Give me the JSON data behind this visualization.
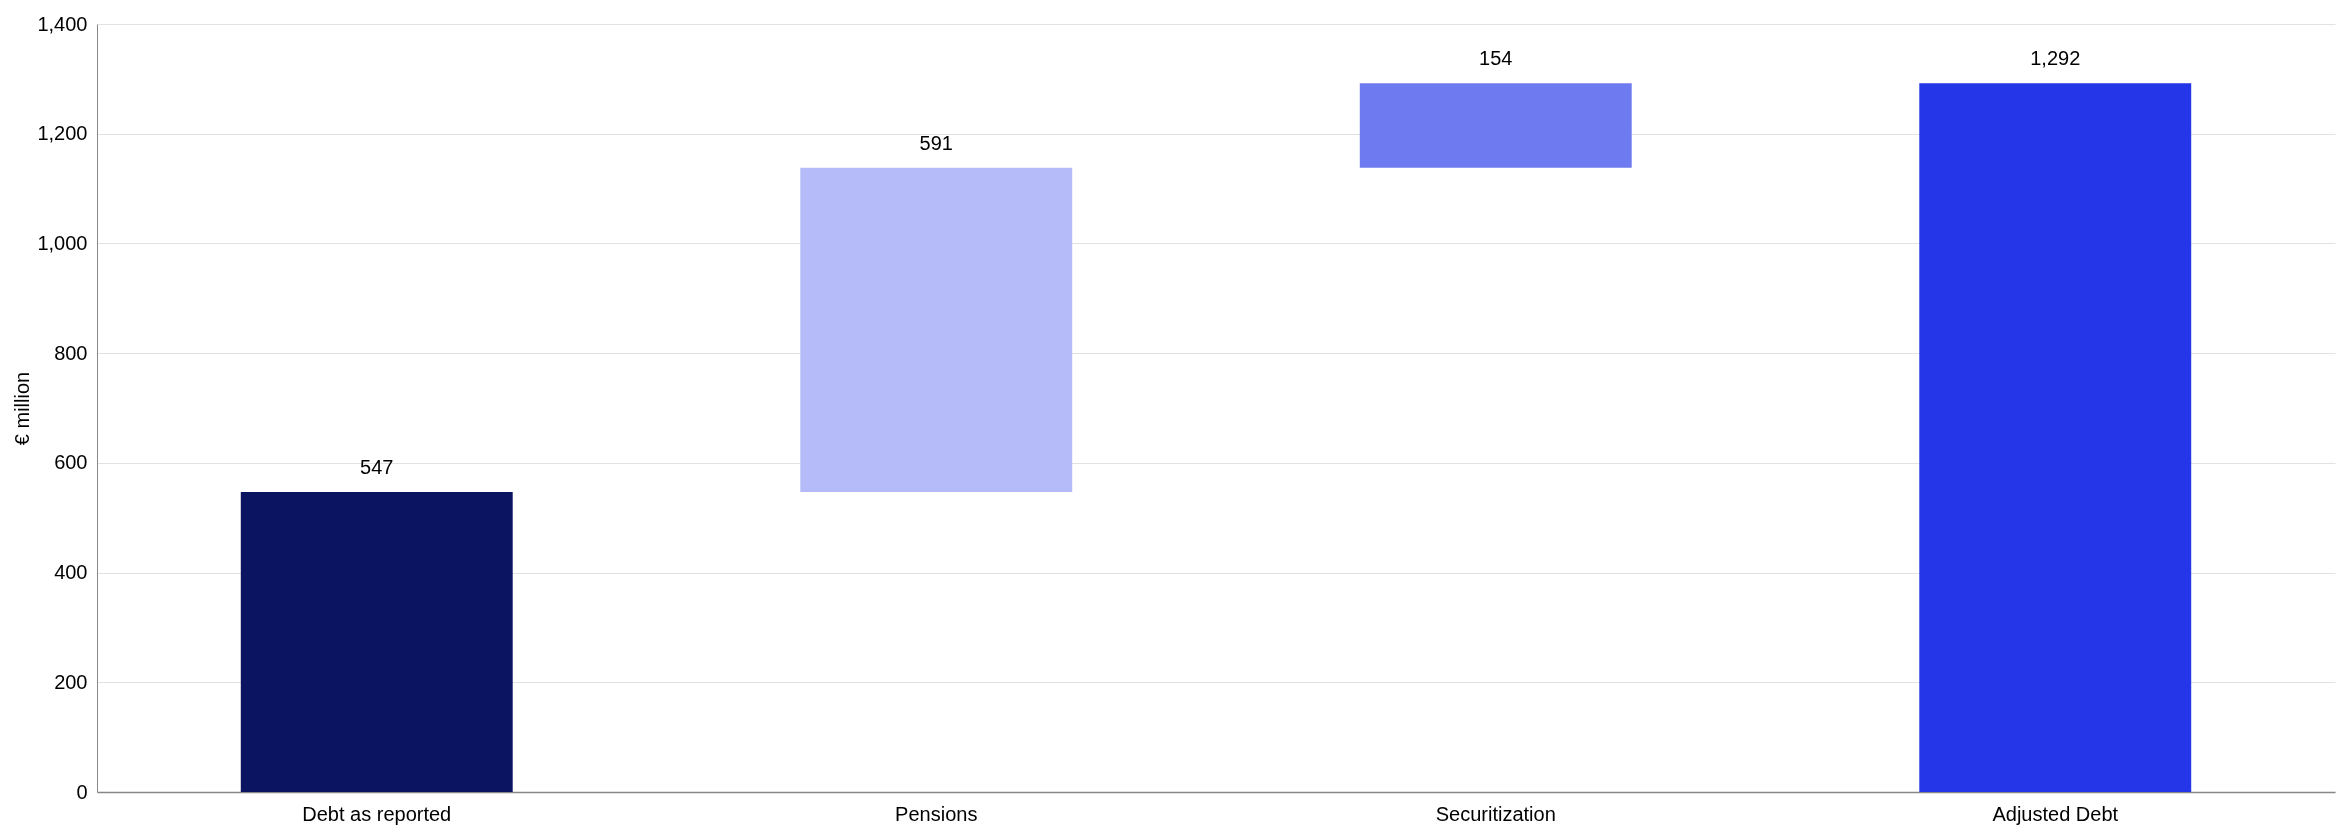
{
  "chart_data": {
    "type": "bar",
    "ylabel": "€ million",
    "categories": [
      "Debt as reported",
      "Pensions",
      "Securitization",
      "Adjusted Debt"
    ],
    "values": [
      547,
      591,
      154,
      1292
    ],
    "base": [
      0,
      547,
      1138,
      0
    ],
    "colors": [
      "#0b1460",
      "#b4bbf8",
      "#6e7af0",
      "#2536e8"
    ],
    "ylim": [
      0,
      1400
    ],
    "yticks": [
      0,
      200,
      400,
      600,
      800,
      {
        "value": 1000,
        "label": "1,000"
      },
      {
        "value": 1200,
        "label": "1,200"
      },
      {
        "value": 1400,
        "label": "1,400"
      }
    ],
    "grid": "y",
    "value_labels": [
      "547",
      "591",
      "154",
      "1,292"
    ]
  }
}
